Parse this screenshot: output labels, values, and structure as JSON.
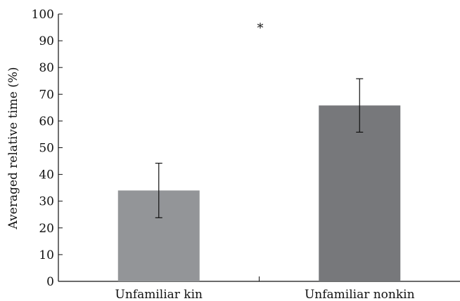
{
  "chart_data": {
    "type": "bar",
    "title": "",
    "xlabel": "",
    "ylabel": "Averaged relative time (%)",
    "ylim": [
      0,
      100
    ],
    "yticks": [
      "0",
      "10",
      "20",
      "30",
      "40",
      "50",
      "60",
      "70",
      "80",
      "90",
      "100"
    ],
    "categories": [
      "Unfamiliar kin",
      "Unfamiliar nonkin"
    ],
    "values": [
      34,
      65.8
    ],
    "error": [
      10.2,
      10
    ],
    "bar_colors": [
      "#939598",
      "#77787b"
    ],
    "significance": "*",
    "grid": false
  }
}
